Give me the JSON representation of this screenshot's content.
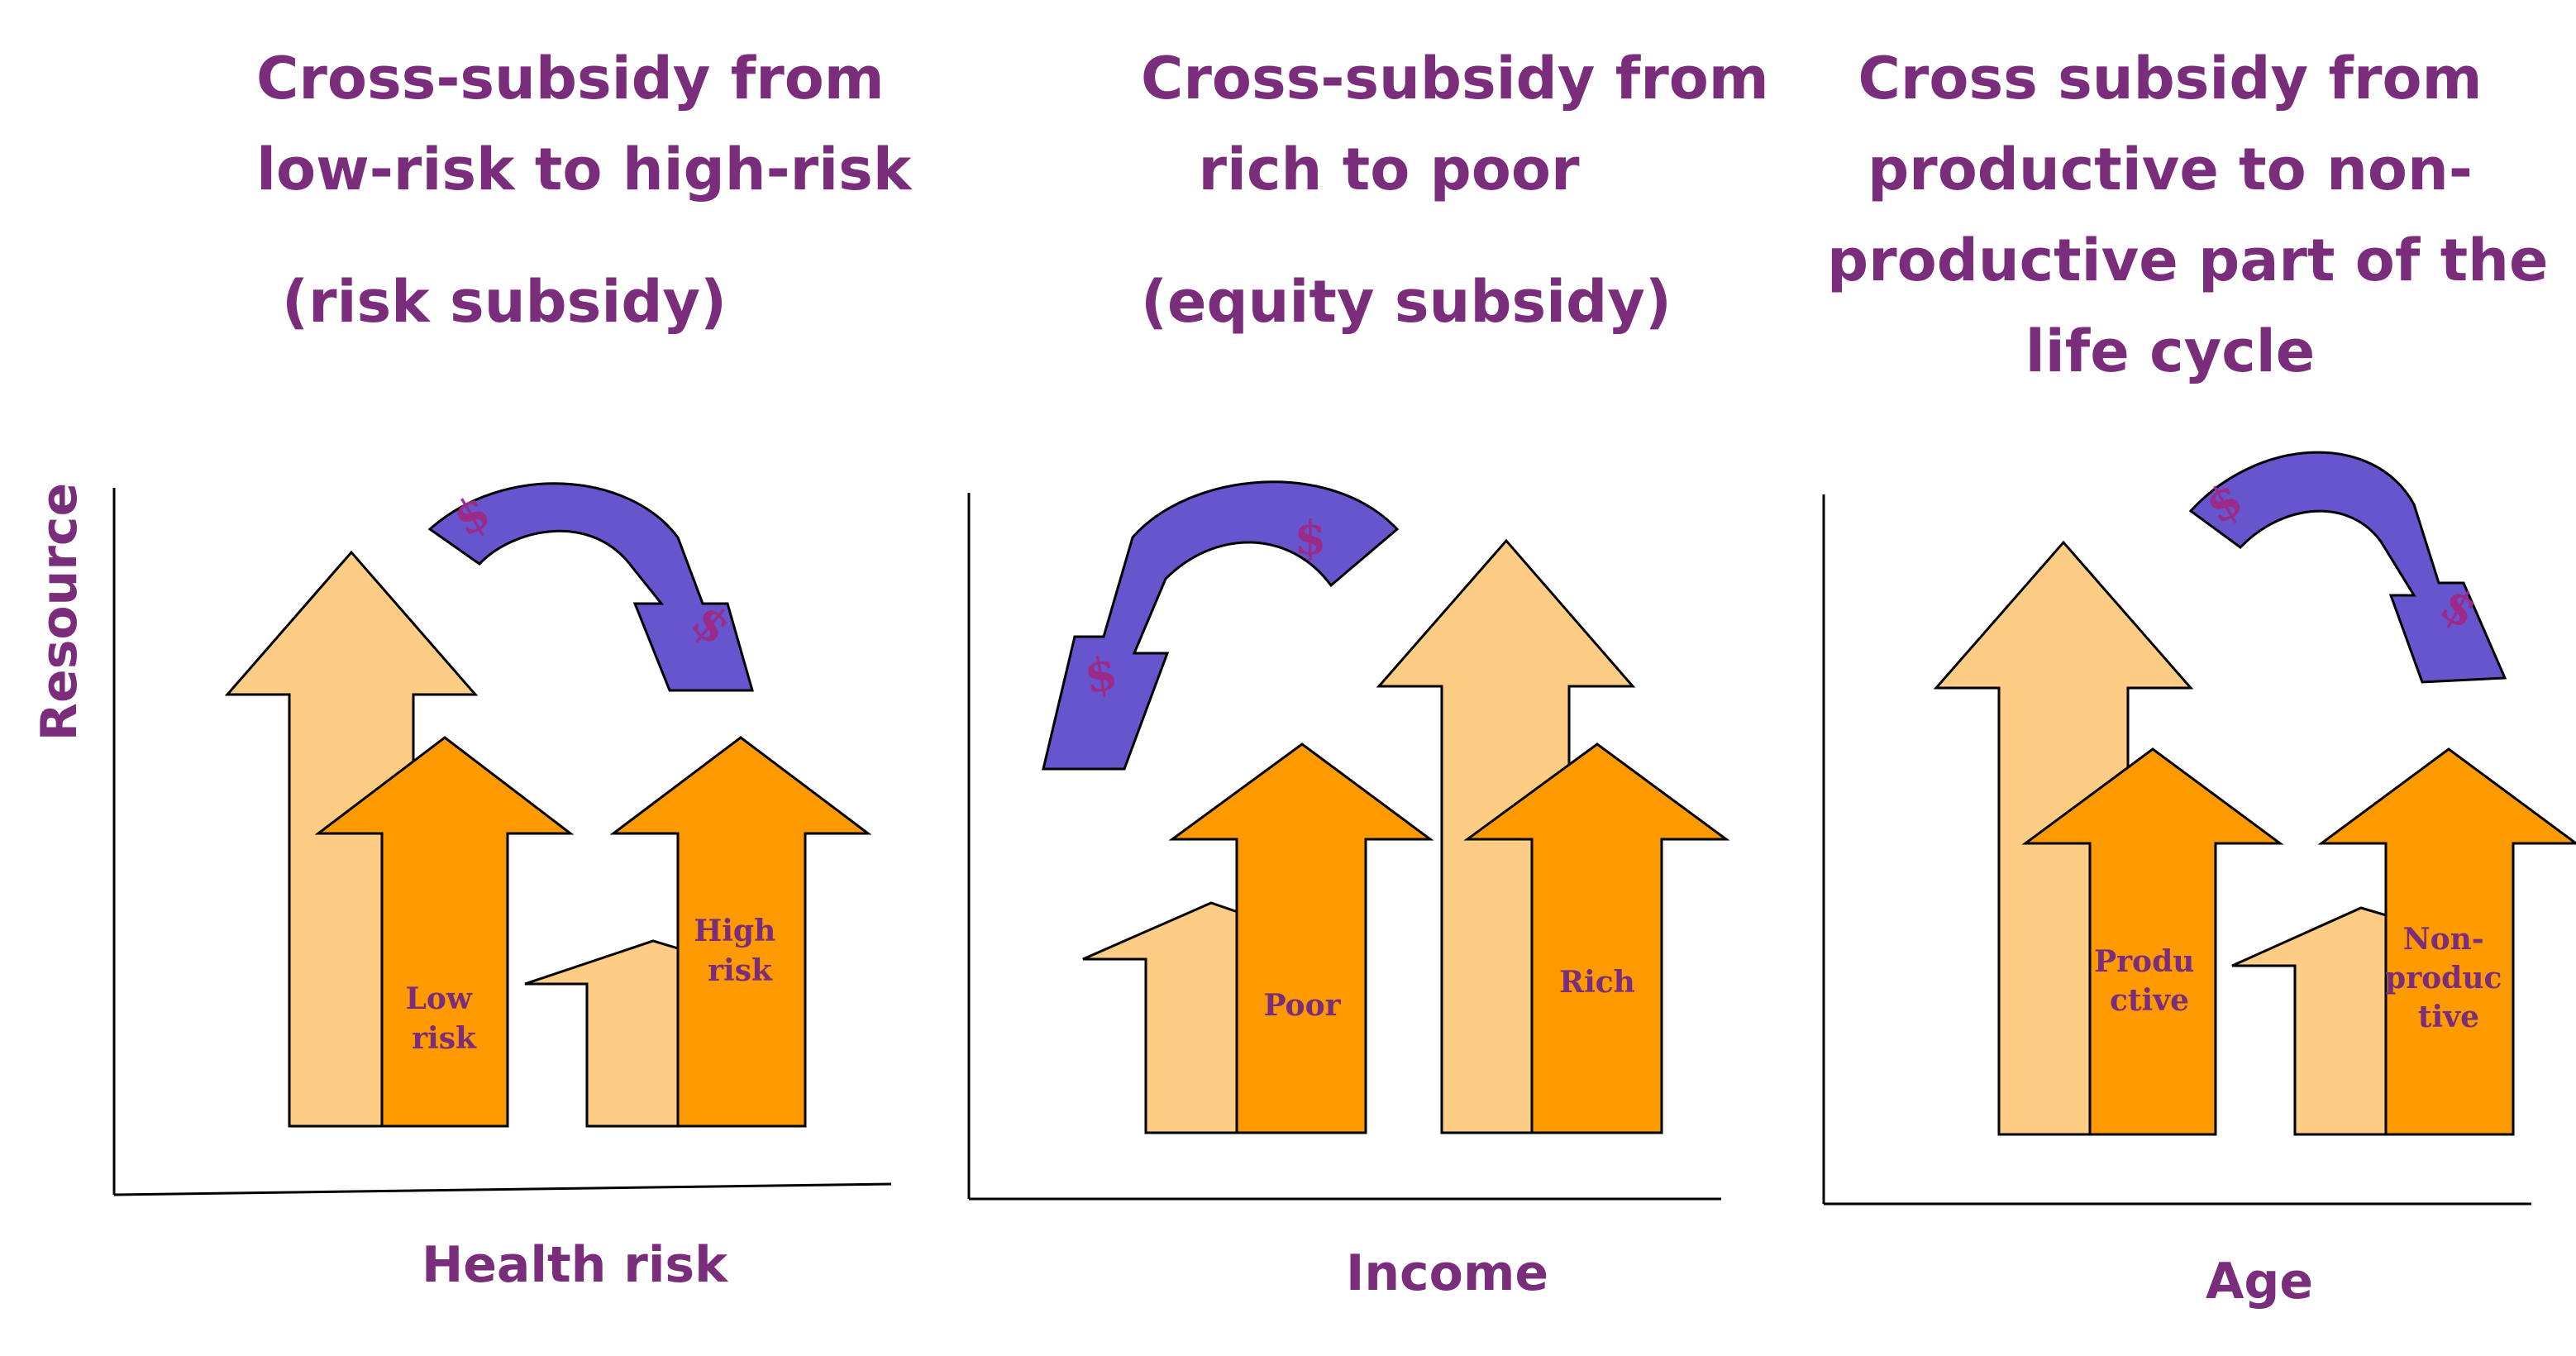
{
  "panels": [
    {
      "title_lines": [
        "Cross-subsidy from",
        "low-risk to high-risk"
      ],
      "subtitle": "(risk subsidy)",
      "x_axis_label": "Health risk",
      "y_axis_label": "Resource",
      "arrow_labels": [
        [
          "Low",
          "risk"
        ],
        [
          "High",
          "risk"
        ]
      ],
      "transfer_symbols": [
        "$",
        "$"
      ]
    },
    {
      "title_lines": [
        "Cross-subsidy from",
        "rich to poor"
      ],
      "subtitle": "(equity subsidy)",
      "x_axis_label": "Income",
      "arrow_labels": [
        [
          "Poor"
        ],
        [
          "Rich"
        ]
      ],
      "transfer_symbols": [
        "$",
        "$"
      ]
    },
    {
      "title_lines": [
        "Cross subsidy from",
        "productive to non-",
        "productive part of the",
        "life cycle"
      ],
      "x_axis_label": "Age",
      "arrow_labels": [
        [
          "Produ",
          "ctive"
        ],
        [
          "Non-",
          "produc",
          "tive"
        ]
      ],
      "transfer_symbols": [
        "$",
        "$"
      ]
    }
  ],
  "colors": {
    "title": "#7a2d7a",
    "light_arrow": "#fdcd85",
    "dark_arrow": "#fd9a00",
    "transfer_arrow": "#6655cc",
    "axis": "#000000"
  }
}
